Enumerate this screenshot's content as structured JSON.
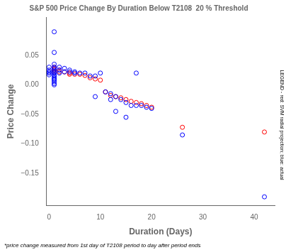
{
  "chart_data": {
    "type": "scatter",
    "title": "S&P 500 Price Change By Duration Below T2108  20 % Threshold",
    "xlabel": "Duration (Days)",
    "ylabel": "Price Change",
    "annotations": [
      "*price change measured from 1st day of T2108 period to day after period ends",
      "LEGEND - red: SVM radial projection; blue: actual"
    ],
    "series": [
      {
        "color": "blue",
        "marker": "circle",
        "x": [
          1,
          1,
          0,
          0,
          0,
          0,
          0,
          1,
          1,
          1,
          1,
          1,
          1,
          1,
          1,
          1,
          1,
          1,
          1,
          1,
          1,
          2,
          2,
          2,
          3,
          3,
          4,
          4,
          5,
          5,
          6,
          7,
          8,
          9,
          9,
          10,
          11,
          12,
          12,
          13,
          13,
          14,
          15,
          15,
          16,
          17,
          17,
          18,
          19,
          20,
          26,
          42
        ],
        "values": [
          0.09,
          0.055,
          0.03,
          0.025,
          0.022,
          0.02,
          0.017,
          0.035,
          0.03,
          0.028,
          0.025,
          0.022,
          0.02,
          0.017,
          0.015,
          0.012,
          0.01,
          0.008,
          0.005,
          0.002,
          0.0,
          0.03,
          0.025,
          0.02,
          0.028,
          0.022,
          0.025,
          0.022,
          0.022,
          0.02,
          0.02,
          0.02,
          0.015,
          0.015,
          -0.02,
          0.02,
          -0.012,
          -0.015,
          -0.025,
          -0.02,
          -0.045,
          -0.025,
          -0.03,
          -0.055,
          -0.035,
          0.02,
          -0.035,
          -0.035,
          -0.038,
          -0.04,
          -0.085,
          -0.19
        ]
      },
      {
        "color": "red",
        "marker": "circle",
        "x": [
          1,
          1,
          1,
          1,
          2,
          2,
          3,
          4,
          4,
          5,
          6,
          7,
          8,
          9,
          10,
          11,
          12,
          13,
          14,
          15,
          16,
          17,
          18,
          19,
          20,
          26,
          42
        ],
        "values": [
          0.03,
          0.027,
          0.025,
          0.022,
          0.025,
          0.022,
          0.022,
          0.02,
          0.018,
          0.018,
          0.018,
          0.016,
          0.012,
          0.01,
          0.008,
          -0.012,
          -0.018,
          -0.02,
          -0.022,
          -0.025,
          -0.028,
          -0.03,
          -0.032,
          -0.035,
          -0.038,
          -0.072,
          -0.08
        ]
      }
    ],
    "xlim": [
      -0.5,
      44
    ],
    "ylim": [
      -0.205,
      0.115
    ],
    "xticks": [
      0,
      10,
      20,
      30,
      40
    ],
    "yticks": [
      0.05,
      {
        "value": 0,
        "label": "0.00"
      },
      {
        "value": -0.05,
        "label": "−0.05"
      },
      {
        "value": -0.1,
        "label": "−0.10"
      },
      {
        "value": -0.15,
        "label": "−0.15"
      }
    ],
    "grid": false
  }
}
